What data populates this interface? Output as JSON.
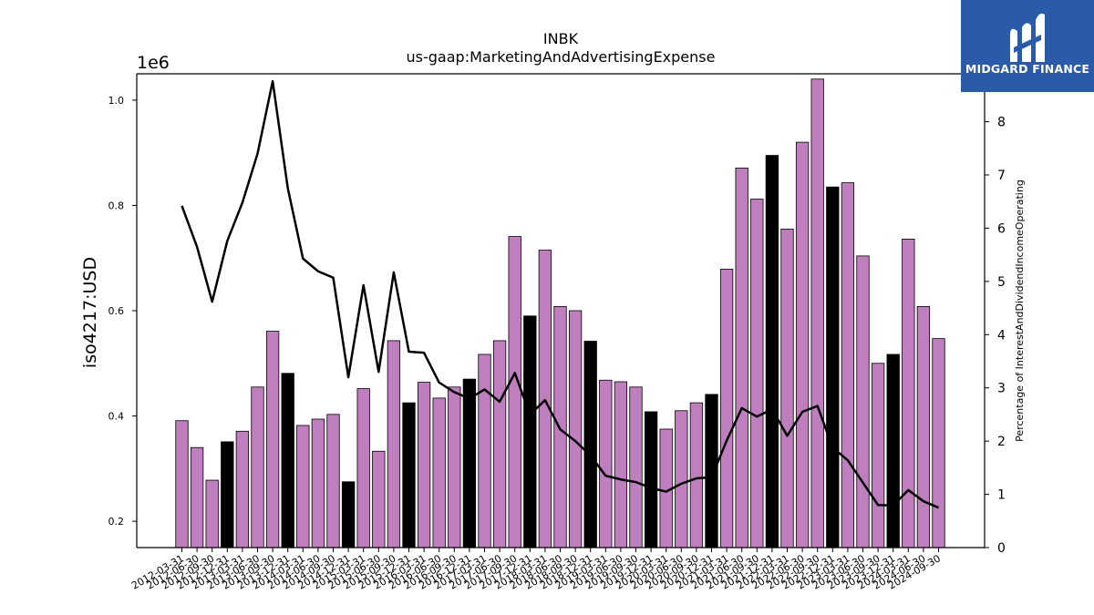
{
  "chart_data": {
    "type": "bar",
    "title": "INBK",
    "subtitle": "us-gaap:MarketingAndAdvertisingExpense",
    "ylabel": "iso4217:USD",
    "y2label": "Percentage of InterestAndDividendIncomeOperating",
    "offset_text": "1e6",
    "ylim": [
      0.15,
      1.05
    ],
    "y2lim": [
      0,
      8.9
    ],
    "yticks": [
      "0.2",
      "0.4",
      "0.6",
      "0.8",
      "1.0"
    ],
    "y2ticks": [
      "0",
      "1",
      "2",
      "3",
      "4",
      "5",
      "6",
      "7",
      "8"
    ],
    "categories": [
      "2012-03-31",
      "2012-06-30",
      "2012-09-30",
      "2012-12-31",
      "2013-03-31",
      "2013-06-30",
      "2013-09-30",
      "2013-12-31",
      "2014-03-31",
      "2014-06-30",
      "2014-09-30",
      "2014-12-31",
      "2015-03-31",
      "2015-06-30",
      "2015-09-30",
      "2015-12-31",
      "2016-03-31",
      "2016-06-30",
      "2016-09-30",
      "2016-12-31",
      "2017-03-31",
      "2017-06-30",
      "2017-09-30",
      "2017-12-31",
      "2018-03-31",
      "2018-06-30",
      "2018-09-30",
      "2018-12-31",
      "2019-03-31",
      "2019-06-30",
      "2019-09-30",
      "2019-12-31",
      "2020-03-31",
      "2020-06-30",
      "2020-09-30",
      "2020-12-31",
      "2021-03-31",
      "2021-06-30",
      "2021-09-30",
      "2021-12-31",
      "2022-03-31",
      "2022-06-30",
      "2022-09-30",
      "2022-12-31",
      "2023-03-31",
      "2023-06-30",
      "2023-09-30",
      "2023-12-31",
      "2024-03-31",
      "2024-06-30",
      "2024-09-30"
    ],
    "bar_values": [
      0.391,
      0.34,
      0.278,
      0.351,
      0.371,
      0.455,
      0.561,
      0.481,
      0.382,
      0.394,
      0.403,
      0.275,
      0.452,
      0.333,
      0.543,
      0.425,
      0.464,
      0.434,
      0.455,
      0.47,
      0.517,
      0.543,
      0.741,
      0.59,
      0.715,
      0.608,
      0.6,
      0.542,
      0.468,
      0.465,
      0.455,
      0.408,
      0.375,
      0.41,
      0.425,
      0.441,
      0.679,
      0.871,
      0.812,
      0.895,
      0.755,
      0.92,
      1.04,
      0.835,
      0.843,
      0.704,
      0.5,
      0.517,
      0.736,
      0.608,
      0.547
    ],
    "highlight_categories": [
      "2012-12-31",
      "2013-12-31",
      "2014-12-31",
      "2015-12-31",
      "2016-12-31",
      "2017-12-31",
      "2018-12-31",
      "2019-12-31",
      "2020-12-31",
      "2021-12-31",
      "2022-12-31",
      "2023-12-31"
    ],
    "line_values": [
      6.42,
      5.65,
      4.62,
      5.76,
      6.48,
      7.4,
      8.76,
      6.75,
      5.43,
      5.19,
      5.07,
      3.2,
      4.93,
      3.3,
      5.17,
      3.68,
      3.66,
      3.1,
      2.92,
      2.8,
      2.97,
      2.74,
      3.28,
      2.5,
      2.77,
      2.22,
      2.0,
      1.73,
      1.35,
      1.28,
      1.23,
      1.12,
      1.05,
      1.2,
      1.3,
      1.32,
      2.01,
      2.62,
      2.46,
      2.6,
      2.1,
      2.55,
      2.66,
      1.88,
      1.64,
      1.22,
      0.8,
      0.79,
      1.08,
      0.87,
      0.75
    ],
    "bar_color": "#bf7fbf",
    "highlight_color": "#000000",
    "line_color": "#000000",
    "grid": false
  },
  "logo": {
    "text": "MIDGARD FINANCE",
    "bg": "#2b5aa8"
  }
}
